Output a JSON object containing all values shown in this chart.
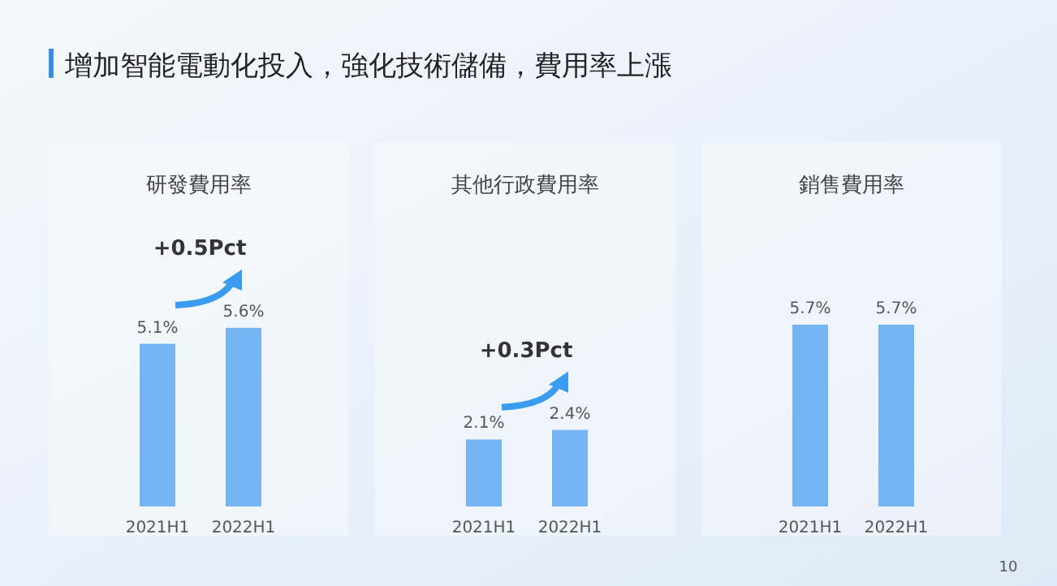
{
  "chart_data": [
    {
      "type": "bar",
      "title": "研發費用率",
      "categories": [
        "2021H1",
        "2022H1"
      ],
      "values": [
        5.1,
        5.6
      ],
      "value_labels": [
        "5.1%",
        "5.6%"
      ],
      "color": "#74b4f2",
      "annotations": [
        "增加智能電動化投入，強化技術儲備，費用率上漲",
        "+0.5Pct"
      ]
    },
    {
      "type": "bar",
      "title": "其他行政費用率",
      "categories": [
        "2021H1",
        "2022H1"
      ],
      "values": [
        2.1,
        2.4
      ],
      "value_labels": [
        "2.1%",
        "2.4%"
      ],
      "color": "#74b4f2",
      "annotations": [
        "+0.3Pct"
      ]
    },
    {
      "type": "bar",
      "title": "銷售費用率",
      "categories": [
        "2021H1",
        "2022H1"
      ],
      "values": [
        5.7,
        5.7
      ],
      "value_labels": [
        "5.7%",
        "5.7%"
      ],
      "color": "#74b4f2",
      "annotations": [
        "10"
      ]
    }
  ]
}
